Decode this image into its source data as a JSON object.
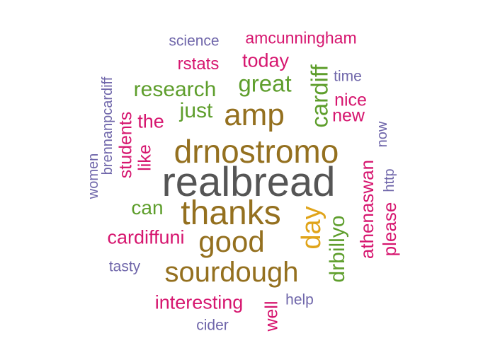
{
  "colors": {
    "background": "#ffffff",
    "dark_gray": "#555555",
    "brown": "#94701f",
    "gold": "#e0a41a",
    "green": "#5e9e2c",
    "magenta": "#d6166f",
    "purple": "#6f66aa"
  },
  "words": {
    "realbread": "realbread",
    "drnostromo": "drnostromo",
    "thanks": "thanks",
    "sourdough": "sourdough",
    "amp": "amp",
    "good": "good",
    "day": "day",
    "great": "great",
    "research": "research",
    "just": "just",
    "cardiff": "cardiff",
    "drbillyo": "drbillyo",
    "can": "can",
    "today": "today",
    "the": "the",
    "cardiffuni": "cardiffuni",
    "interesting": "interesting",
    "athenaswan": "athenaswan",
    "please": "please",
    "nice": "nice",
    "new": "new",
    "students": "students",
    "like": "like",
    "rstats": "rstats",
    "amcunningham": "amcunningham",
    "well": "well",
    "science": "science",
    "time": "time",
    "brennanpcardiff": "brennanpcardiff",
    "women": "women",
    "tasty": "tasty",
    "cider": "cider",
    "help": "help",
    "now": "now",
    "http": "http"
  }
}
